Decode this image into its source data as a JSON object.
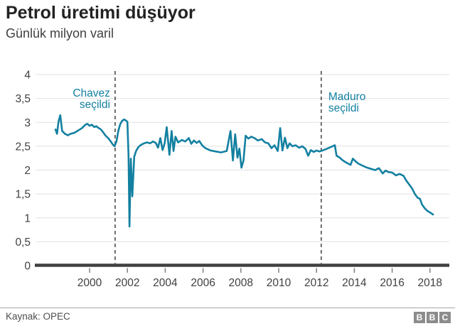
{
  "header": {
    "title": "Petrol üretimi düşüyor",
    "subtitle": "Günlük milyon varil"
  },
  "footer": {
    "source": "Kaynak: OPEC",
    "logo_letters": [
      "B",
      "B",
      "C"
    ]
  },
  "colors": {
    "line": "#1380A1",
    "annotation_text": "#1380A1",
    "grid": "#e2e2e2",
    "axis_baseline": "#404040",
    "tick": "#808080",
    "tick_label": "#404040",
    "event_line": "#404040"
  },
  "chart_data": {
    "type": "line",
    "title": "Petrol üretimi düşüyor",
    "subtitle": "Günlük milyon varil",
    "xlabel": "",
    "ylabel": "Günlük milyon varil",
    "ylim": [
      0,
      4
    ],
    "xlim": [
      1997.1,
      2019.0
    ],
    "grid": "horizontal-only",
    "legend": "none",
    "y_tick_values": [
      0,
      0.5,
      1,
      1.5,
      2,
      2.5,
      3,
      3.5,
      4
    ],
    "y_tick_labels": [
      "0",
      "0,5",
      "1",
      "1,5",
      "2",
      "2,5",
      "3",
      "3,5",
      "4"
    ],
    "x_tick_values": [
      2000,
      2002,
      2004,
      2006,
      2008,
      2010,
      2012,
      2014,
      2016,
      2018
    ],
    "x_tick_labels": [
      "2000",
      "2002",
      "2004",
      "2006",
      "2008",
      "2010",
      "2012",
      "2014",
      "2016",
      "2018"
    ],
    "annotations": [
      {
        "lines": [
          "Chavez",
          "seçildi"
        ],
        "year": 2001.35,
        "side": "right",
        "text_y": 136
      },
      {
        "lines": [
          "Maduro",
          "seçildi"
        ],
        "year": 2012.25,
        "side": "left",
        "text_y": 141
      }
    ],
    "series": [
      {
        "name": "Petrol üretimi (günlük milyon varil)",
        "points": [
          [
            1998.2,
            2.85
          ],
          [
            1998.28,
            2.76
          ],
          [
            1998.36,
            3.02
          ],
          [
            1998.45,
            3.15
          ],
          [
            1998.55,
            2.82
          ],
          [
            1998.7,
            2.76
          ],
          [
            1998.85,
            2.73
          ],
          [
            1999.0,
            2.76
          ],
          [
            1999.2,
            2.78
          ],
          [
            1999.4,
            2.83
          ],
          [
            1999.6,
            2.88
          ],
          [
            1999.75,
            2.94
          ],
          [
            1999.88,
            2.97
          ],
          [
            2000.0,
            2.93
          ],
          [
            2000.12,
            2.95
          ],
          [
            2000.25,
            2.9
          ],
          [
            2000.35,
            2.92
          ],
          [
            2000.48,
            2.88
          ],
          [
            2000.6,
            2.85
          ],
          [
            2000.72,
            2.79
          ],
          [
            2000.85,
            2.72
          ],
          [
            2000.98,
            2.67
          ],
          [
            2001.1,
            2.61
          ],
          [
            2001.22,
            2.54
          ],
          [
            2001.32,
            2.5
          ],
          [
            2001.42,
            2.6
          ],
          [
            2001.52,
            2.82
          ],
          [
            2001.62,
            2.96
          ],
          [
            2001.72,
            3.03
          ],
          [
            2001.82,
            3.06
          ],
          [
            2001.92,
            3.04
          ],
          [
            2002.0,
            3.01
          ],
          [
            2002.06,
            2.3
          ],
          [
            2002.11,
            0.82
          ],
          [
            2002.18,
            2.24
          ],
          [
            2002.26,
            1.45
          ],
          [
            2002.36,
            2.28
          ],
          [
            2002.46,
            2.4
          ],
          [
            2002.58,
            2.48
          ],
          [
            2002.72,
            2.53
          ],
          [
            2002.88,
            2.56
          ],
          [
            2003.05,
            2.58
          ],
          [
            2003.2,
            2.56
          ],
          [
            2003.35,
            2.6
          ],
          [
            2003.5,
            2.57
          ],
          [
            2003.62,
            2.47
          ],
          [
            2003.74,
            2.67
          ],
          [
            2003.86,
            2.42
          ],
          [
            2003.97,
            2.56
          ],
          [
            2004.08,
            2.9
          ],
          [
            2004.22,
            2.32
          ],
          [
            2004.34,
            2.82
          ],
          [
            2004.44,
            2.4
          ],
          [
            2004.54,
            2.7
          ],
          [
            2004.68,
            2.58
          ],
          [
            2004.88,
            2.63
          ],
          [
            2005.06,
            2.6
          ],
          [
            2005.25,
            2.67
          ],
          [
            2005.38,
            2.55
          ],
          [
            2005.52,
            2.62
          ],
          [
            2005.66,
            2.57
          ],
          [
            2005.8,
            2.61
          ],
          [
            2005.95,
            2.52
          ],
          [
            2006.12,
            2.46
          ],
          [
            2006.4,
            2.41
          ],
          [
            2006.68,
            2.39
          ],
          [
            2006.95,
            2.37
          ],
          [
            2007.25,
            2.4
          ],
          [
            2007.45,
            2.82
          ],
          [
            2007.58,
            2.2
          ],
          [
            2007.7,
            2.75
          ],
          [
            2007.82,
            2.26
          ],
          [
            2007.92,
            2.45
          ],
          [
            2008.03,
            2.05
          ],
          [
            2008.14,
            2.2
          ],
          [
            2008.25,
            2.72
          ],
          [
            2008.4,
            2.66
          ],
          [
            2008.55,
            2.7
          ],
          [
            2008.72,
            2.67
          ],
          [
            2008.9,
            2.62
          ],
          [
            2009.1,
            2.65
          ],
          [
            2009.28,
            2.58
          ],
          [
            2009.45,
            2.56
          ],
          [
            2009.62,
            2.46
          ],
          [
            2009.78,
            2.52
          ],
          [
            2009.95,
            2.4
          ],
          [
            2010.08,
            2.88
          ],
          [
            2010.2,
            2.41
          ],
          [
            2010.33,
            2.68
          ],
          [
            2010.46,
            2.46
          ],
          [
            2010.58,
            2.56
          ],
          [
            2010.72,
            2.5
          ],
          [
            2010.9,
            2.52
          ],
          [
            2011.08,
            2.47
          ],
          [
            2011.25,
            2.5
          ],
          [
            2011.42,
            2.44
          ],
          [
            2011.56,
            2.3
          ],
          [
            2011.7,
            2.42
          ],
          [
            2011.85,
            2.38
          ],
          [
            2012.0,
            2.41
          ],
          [
            2012.15,
            2.39
          ],
          [
            2012.32,
            2.41
          ],
          [
            2012.5,
            2.44
          ],
          [
            2012.68,
            2.47
          ],
          [
            2012.85,
            2.5
          ],
          [
            2012.97,
            2.52
          ],
          [
            2013.06,
            2.3
          ],
          [
            2013.2,
            2.27
          ],
          [
            2013.4,
            2.2
          ],
          [
            2013.6,
            2.15
          ],
          [
            2013.8,
            2.11
          ],
          [
            2013.92,
            2.24
          ],
          [
            2014.05,
            2.19
          ],
          [
            2014.2,
            2.14
          ],
          [
            2014.4,
            2.1
          ],
          [
            2014.62,
            2.06
          ],
          [
            2014.85,
            2.03
          ],
          [
            2015.1,
            2.0
          ],
          [
            2015.3,
            2.04
          ],
          [
            2015.5,
            1.93
          ],
          [
            2015.65,
            1.99
          ],
          [
            2015.8,
            1.96
          ],
          [
            2016.0,
            1.95
          ],
          [
            2016.2,
            1.89
          ],
          [
            2016.4,
            1.92
          ],
          [
            2016.6,
            1.88
          ],
          [
            2016.75,
            1.78
          ],
          [
            2016.9,
            1.7
          ],
          [
            2017.05,
            1.62
          ],
          [
            2017.2,
            1.5
          ],
          [
            2017.35,
            1.42
          ],
          [
            2017.47,
            1.4
          ],
          [
            2017.58,
            1.28
          ],
          [
            2017.72,
            1.2
          ],
          [
            2017.88,
            1.14
          ],
          [
            2018.02,
            1.11
          ],
          [
            2018.16,
            1.07
          ]
        ]
      }
    ]
  }
}
